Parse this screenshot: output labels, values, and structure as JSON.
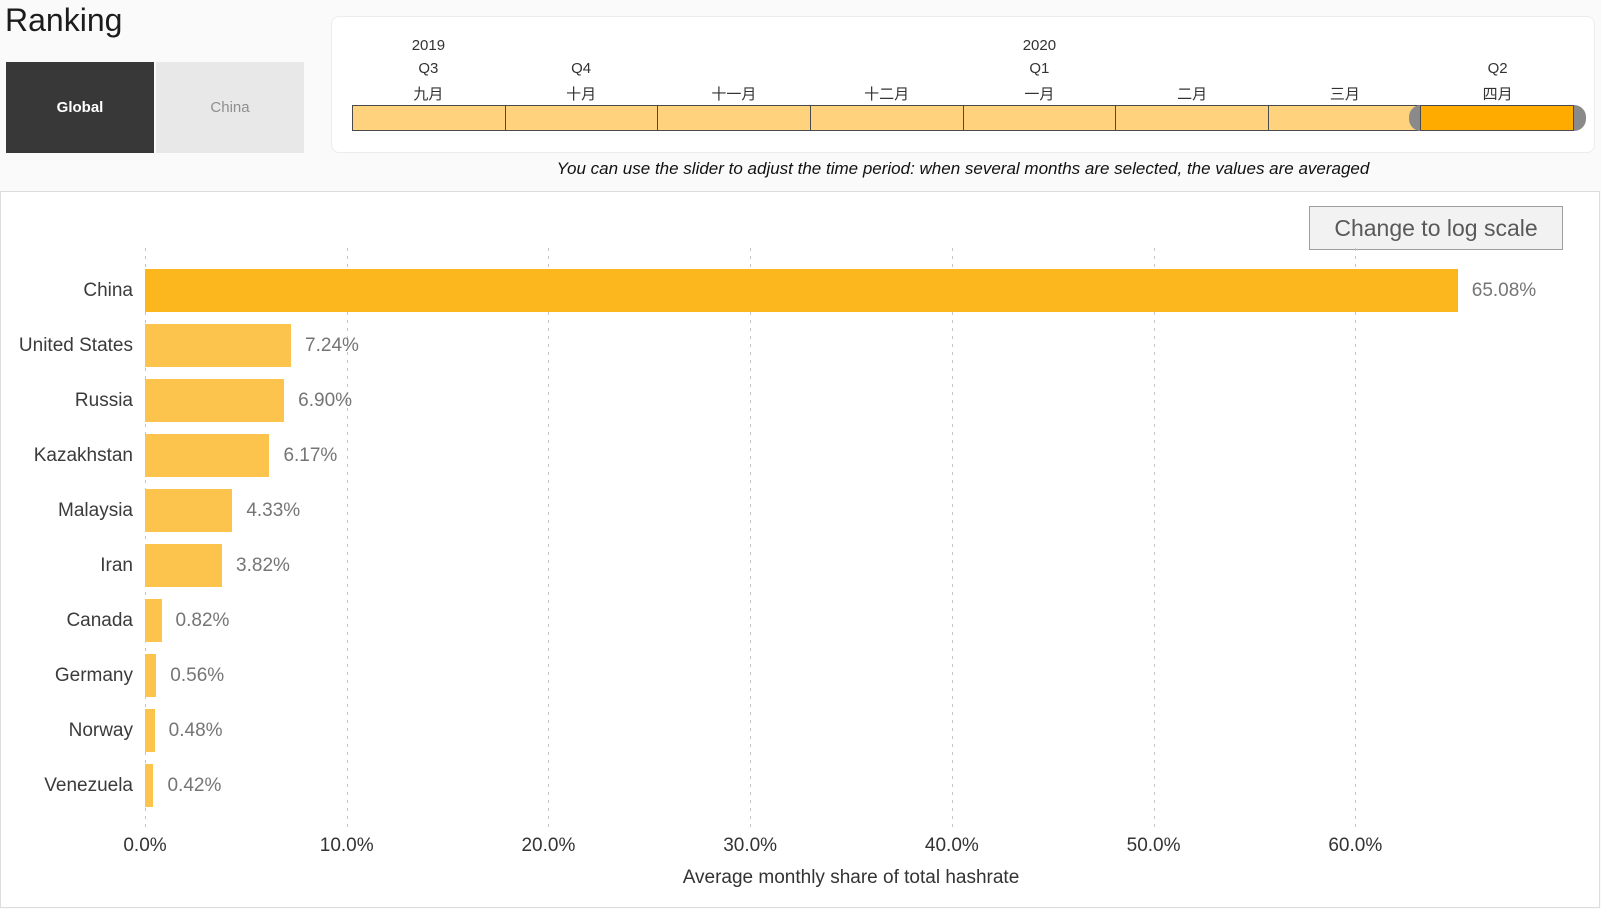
{
  "header": {
    "title": "Ranking",
    "tabs": [
      {
        "label": "Global",
        "active": true
      },
      {
        "label": "China",
        "active": false
      }
    ]
  },
  "slider": {
    "segments": [
      {
        "year": "2019",
        "quarter": "Q3",
        "month": "九月",
        "selected": false
      },
      {
        "year": "",
        "quarter": "Q4",
        "month": "十月",
        "selected": false
      },
      {
        "year": "",
        "quarter": "",
        "month": "十一月",
        "selected": false
      },
      {
        "year": "",
        "quarter": "",
        "month": "十二月",
        "selected": false
      },
      {
        "year": "2020",
        "quarter": "Q1",
        "month": "一月",
        "selected": false
      },
      {
        "year": "",
        "quarter": "",
        "month": "二月",
        "selected": false
      },
      {
        "year": "",
        "quarter": "",
        "month": "三月",
        "selected": false
      },
      {
        "year": "",
        "quarter": "Q2",
        "month": "四月",
        "selected": true
      }
    ],
    "caption": "You can use the slider to adjust the time period: when several months are selected, the values are averaged",
    "colors": {
      "segment": "#FFD27E",
      "selected_segment": "#FFAB00",
      "handle": "#8A8A8A"
    }
  },
  "chart": {
    "log_scale_button": "Change to log scale"
  },
  "chart_data": {
    "type": "bar",
    "orientation": "horizontal",
    "title": "",
    "xlabel": "Average monthly share of total hashrate",
    "ylabel": "",
    "xlim": [
      0,
      70
    ],
    "grid": "dashed-vertical",
    "legend": "none",
    "x_tick_labels": [
      "0.0%",
      "10.0%",
      "20.0%",
      "30.0%",
      "40.0%",
      "50.0%",
      "60.0%"
    ],
    "x_tick_values": [
      0,
      10,
      20,
      30,
      40,
      50,
      60
    ],
    "categories": [
      "China",
      "United States",
      "Russia",
      "Kazakhstan",
      "Malaysia",
      "Iran",
      "Canada",
      "Germany",
      "Norway",
      "Venezuela"
    ],
    "values": [
      65.08,
      7.24,
      6.9,
      6.17,
      4.33,
      3.82,
      0.82,
      0.56,
      0.48,
      0.42
    ],
    "value_labels": [
      "65.08%",
      "7.24%",
      "6.90%",
      "6.17%",
      "4.33%",
      "3.82%",
      "0.82%",
      "0.56%",
      "0.48%",
      "0.42%"
    ],
    "highlight_category": "China",
    "colors": {
      "highlight": "#FDB71E",
      "default": "#FDC44D"
    }
  }
}
